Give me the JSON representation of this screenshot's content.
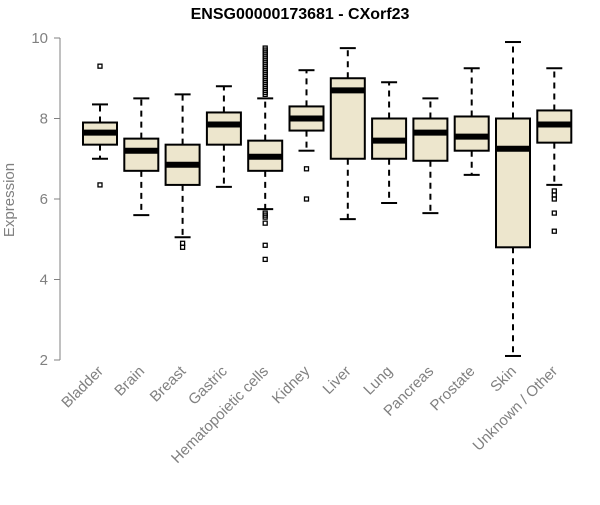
{
  "chart_data": {
    "type": "boxplot",
    "title": "ENSG00000173681 - CXorf23",
    "xlabel": "",
    "ylabel": "Expression",
    "ylim": [
      2,
      10
    ],
    "yticks": [
      2,
      4,
      6,
      8,
      10
    ],
    "grid": false,
    "colors": {
      "box_fill": "#ede6cd",
      "box_stroke": "#000000",
      "axis": "#808080",
      "label": "#808080"
    },
    "categories": [
      "Bladder",
      "Brain",
      "Breast",
      "Gastric",
      "Hematopoietic cells",
      "Kidney",
      "Liver",
      "Lung",
      "Pancreas",
      "Prostate",
      "Skin",
      "Unknown / Other"
    ],
    "boxes": [
      {
        "category": "Bladder",
        "whisker_low": 7.0,
        "q1": 7.35,
        "median": 7.65,
        "q3": 7.9,
        "whisker_high": 8.35,
        "outliers": [
          9.3,
          6.35
        ]
      },
      {
        "category": "Brain",
        "whisker_low": 5.6,
        "q1": 6.7,
        "median": 7.2,
        "q3": 7.5,
        "whisker_high": 8.5,
        "outliers": []
      },
      {
        "category": "Breast",
        "whisker_low": 5.05,
        "q1": 6.35,
        "median": 6.85,
        "q3": 7.35,
        "whisker_high": 8.6,
        "outliers": [
          4.9,
          4.8
        ]
      },
      {
        "category": "Gastric",
        "whisker_low": 6.3,
        "q1": 7.35,
        "median": 7.85,
        "q3": 8.15,
        "whisker_high": 8.8,
        "outliers": []
      },
      {
        "category": "Hematopoietic cells",
        "whisker_low": 5.75,
        "q1": 6.7,
        "median": 7.05,
        "q3": 7.45,
        "whisker_high": 8.5,
        "outliers": [
          9.75,
          9.7,
          9.65,
          9.6,
          9.55,
          9.5,
          9.45,
          9.4,
          9.35,
          9.3,
          9.25,
          9.2,
          9.15,
          9.1,
          9.05,
          9.0,
          8.95,
          8.9,
          8.85,
          8.8,
          8.75,
          8.7,
          8.65,
          8.6,
          5.65,
          5.6,
          5.55,
          5.4,
          4.85,
          4.5
        ]
      },
      {
        "category": "Kidney",
        "whisker_low": 7.2,
        "q1": 7.7,
        "median": 8.0,
        "q3": 8.3,
        "whisker_high": 9.2,
        "outliers": [
          6.75,
          6.0
        ]
      },
      {
        "category": "Liver",
        "whisker_low": 5.5,
        "q1": 7.0,
        "median": 8.7,
        "q3": 9.0,
        "whisker_high": 9.75,
        "outliers": []
      },
      {
        "category": "Lung",
        "whisker_low": 5.9,
        "q1": 7.0,
        "median": 7.45,
        "q3": 8.0,
        "whisker_high": 8.9,
        "outliers": []
      },
      {
        "category": "Pancreas",
        "whisker_low": 5.65,
        "q1": 6.95,
        "median": 7.65,
        "q3": 8.0,
        "whisker_high": 8.5,
        "outliers": []
      },
      {
        "category": "Prostate",
        "whisker_low": 6.6,
        "q1": 7.2,
        "median": 7.55,
        "q3": 8.05,
        "whisker_high": 9.25,
        "outliers": []
      },
      {
        "category": "Skin",
        "whisker_low": 2.1,
        "q1": 4.8,
        "median": 7.25,
        "q3": 8.0,
        "whisker_high": 9.9,
        "outliers": []
      },
      {
        "category": "Unknown / Other",
        "whisker_low": 6.35,
        "q1": 7.4,
        "median": 7.85,
        "q3": 8.2,
        "whisker_high": 9.25,
        "outliers": [
          6.2,
          6.1,
          6.0,
          5.65,
          5.2
        ]
      }
    ]
  }
}
